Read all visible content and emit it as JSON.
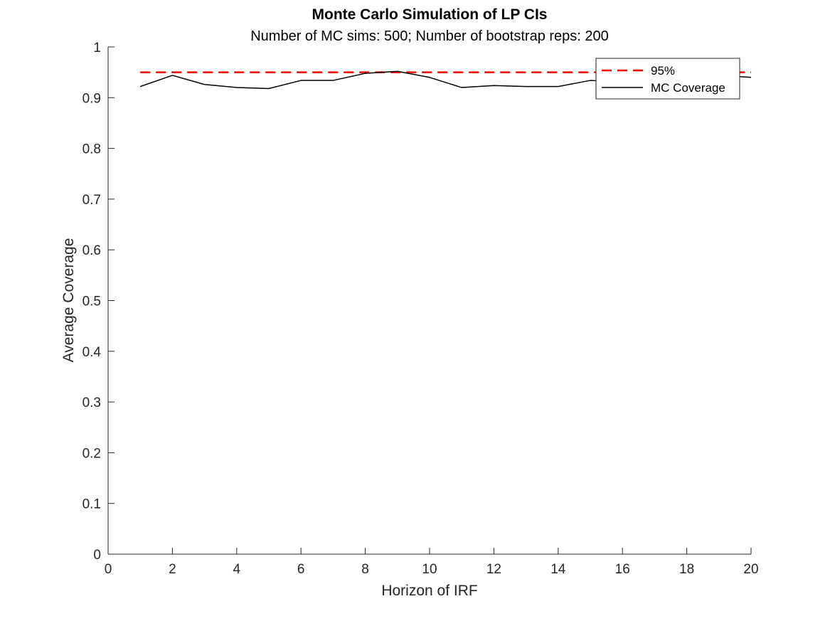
{
  "chart_data": {
    "type": "line",
    "title": "Monte Carlo Simulation of LP CIs",
    "subtitle": "Number of MC sims: 500; Number of bootstrap reps: 200",
    "xlabel": "Horizon of IRF",
    "ylabel": "Average Coverage",
    "xlim": [
      0,
      20
    ],
    "ylim": [
      0,
      1
    ],
    "x_ticks": [
      0,
      2,
      4,
      6,
      8,
      10,
      12,
      14,
      16,
      18,
      20
    ],
    "y_ticks": [
      0,
      0.1,
      0.2,
      0.3,
      0.4,
      0.5,
      0.6,
      0.7,
      0.8,
      0.9,
      1
    ],
    "grid": false,
    "legend_position": "top-right",
    "series": [
      {
        "name": "95%",
        "style": "dashed",
        "color": "#ff0000",
        "x": [
          1,
          20
        ],
        "y": [
          0.95,
          0.95
        ]
      },
      {
        "name": "MC Coverage",
        "style": "solid",
        "color": "#000000",
        "x": [
          1,
          2,
          3,
          4,
          5,
          6,
          7,
          8,
          9,
          10,
          11,
          12,
          13,
          14,
          15,
          16,
          17,
          18,
          19,
          20
        ],
        "y": [
          0.922,
          0.944,
          0.926,
          0.92,
          0.918,
          0.934,
          0.934,
          0.948,
          0.952,
          0.94,
          0.92,
          0.924,
          0.922,
          0.922,
          0.934,
          0.93,
          0.934,
          0.938,
          0.944,
          0.94
        ]
      }
    ]
  }
}
